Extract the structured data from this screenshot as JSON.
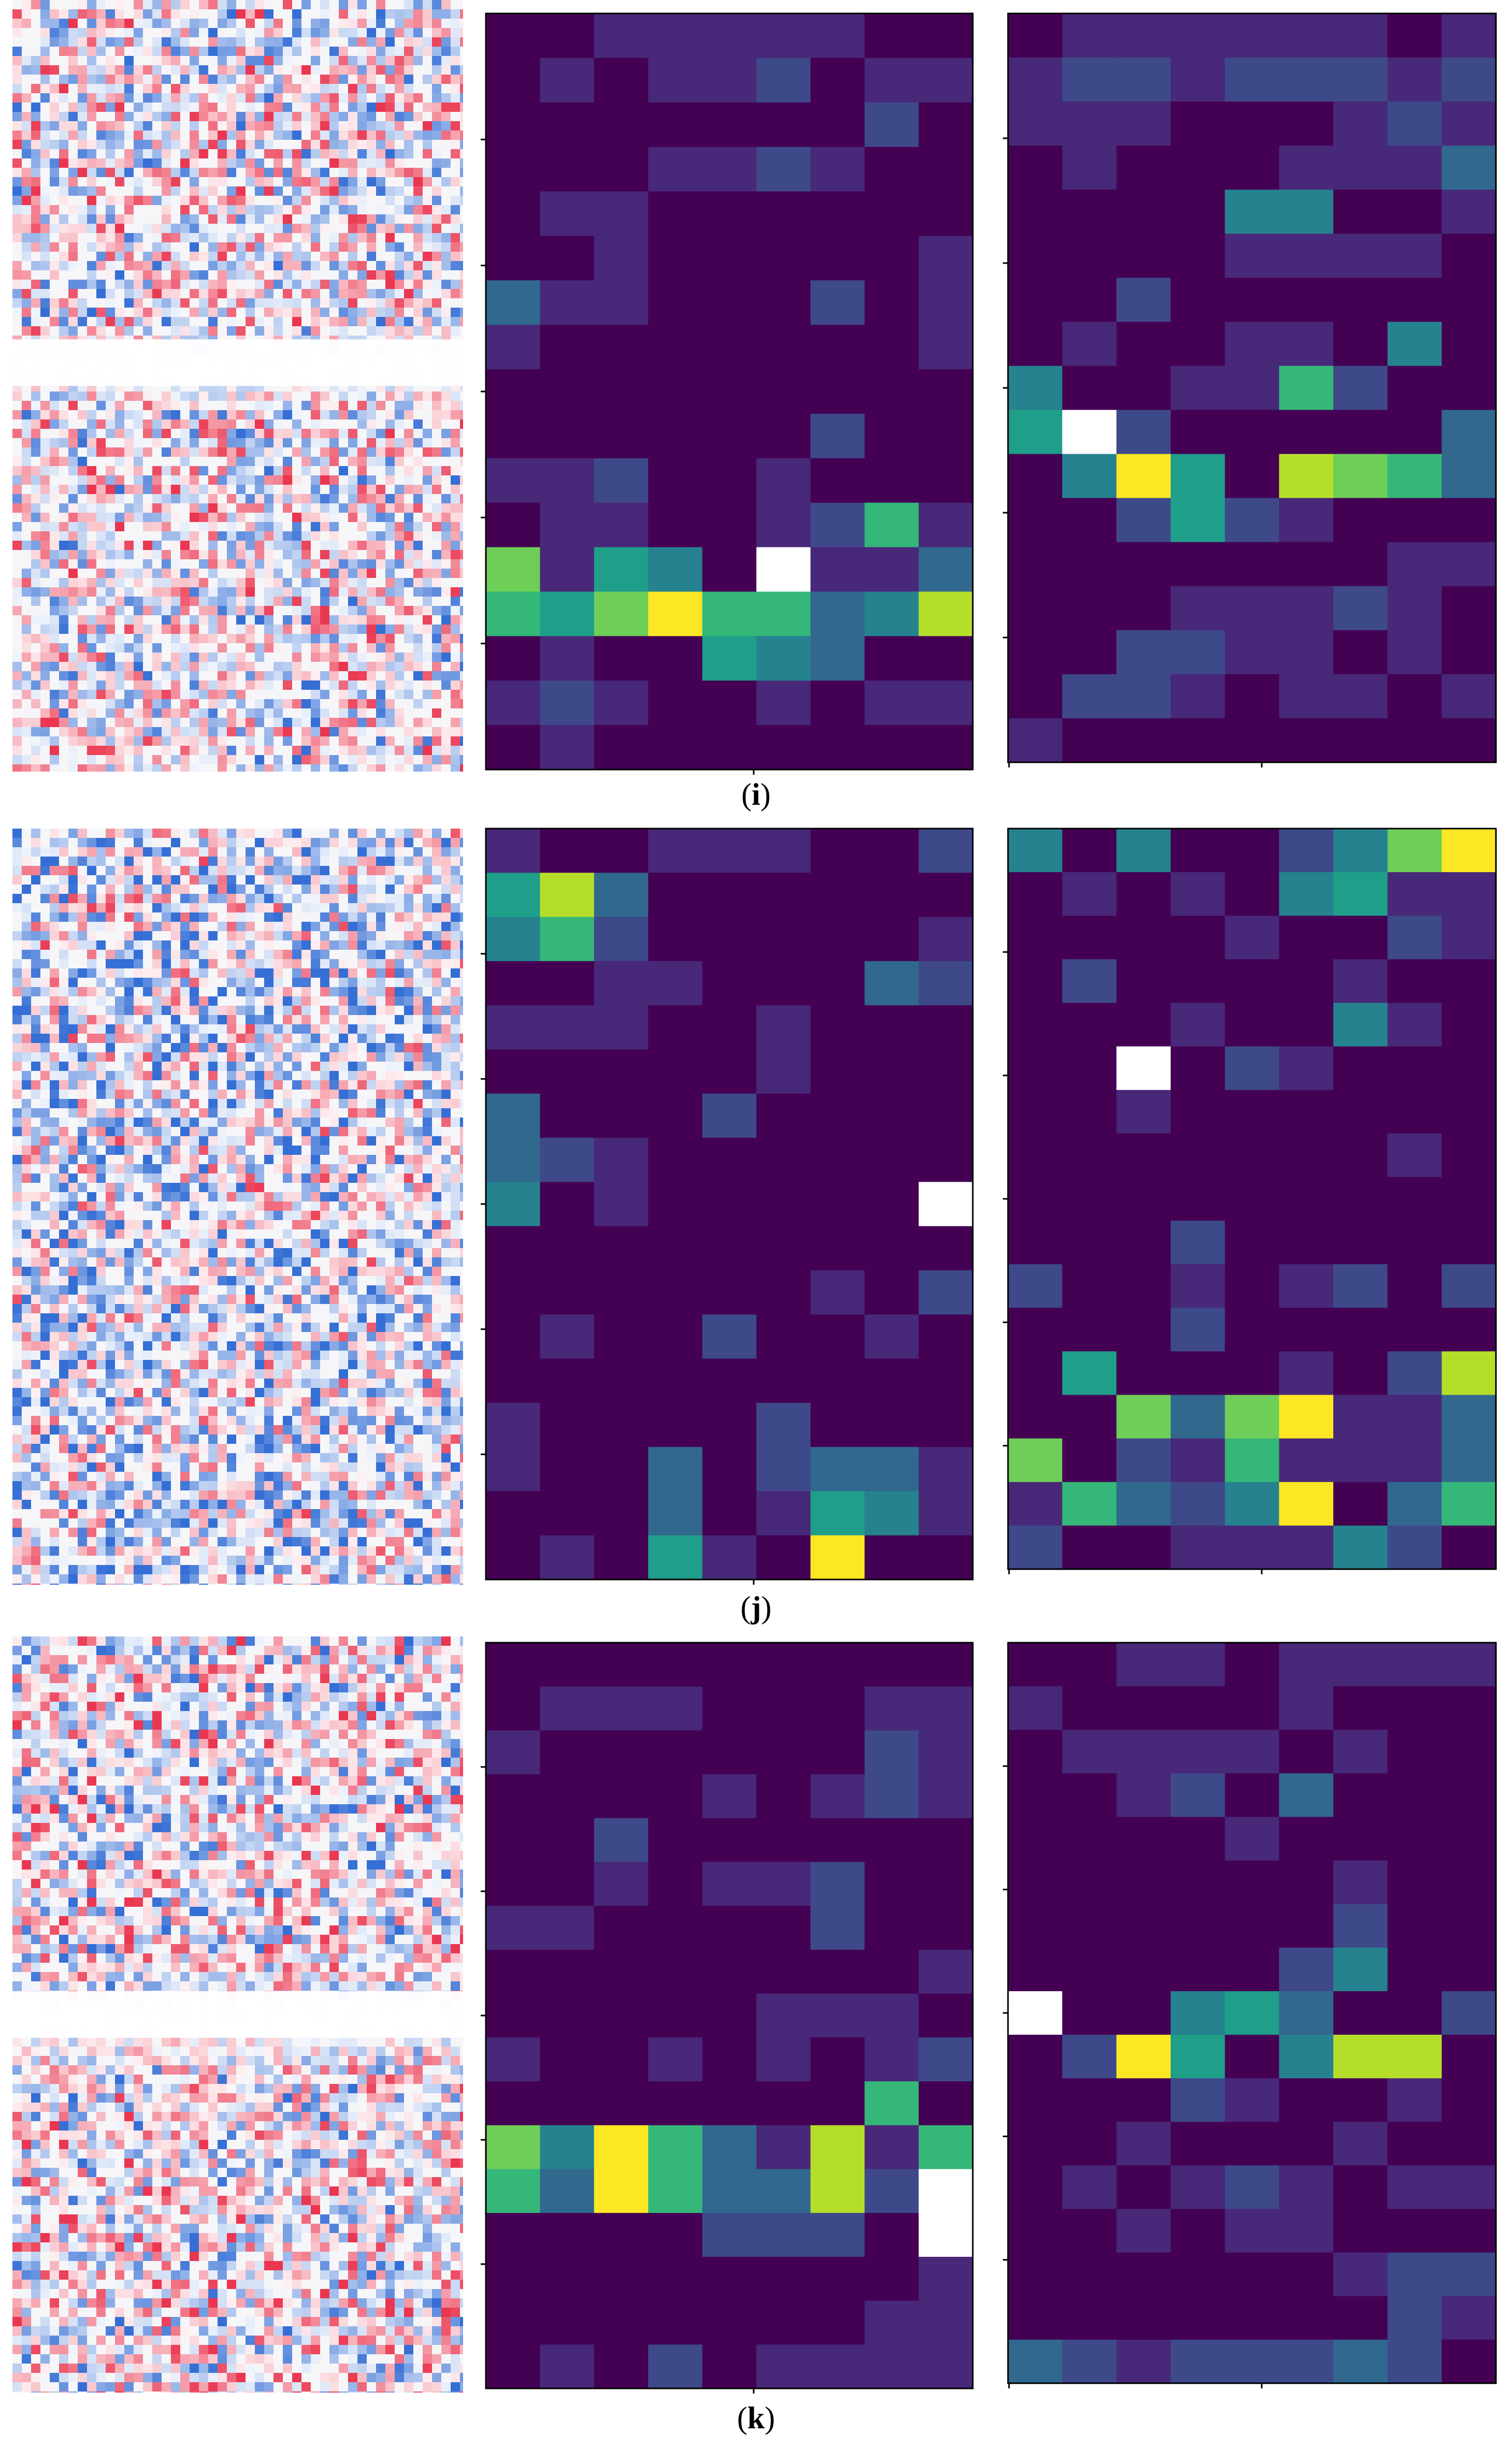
{
  "figure": {
    "panels": [
      {
        "caption_open": "(",
        "caption_letter": "i",
        "caption_close": ")"
      },
      {
        "caption_open": "(",
        "caption_letter": "j",
        "caption_close": ")"
      },
      {
        "caption_open": "(",
        "caption_letter": "k",
        "caption_close": ")"
      }
    ]
  },
  "colors": {
    "viridis": [
      "#440154",
      "#482878",
      "#3e4989",
      "#31688e",
      "#26828e",
      "#1f9e89",
      "#35b779",
      "#6ece58",
      "#b5de2b",
      "#fde725"
    ],
    "saturated_max": "#ffffff",
    "saliency_positive": "#e8203c",
    "saliency_negative": "#1f5fd0",
    "saliency_neutral": "#f6f6f8"
  },
  "chart_data": [
    {
      "panel": "i",
      "type": "heatmap",
      "role": "middle",
      "rows": 17,
      "cols": 9,
      "values": [
        [
          0,
          0,
          1,
          1,
          1,
          1,
          1,
          0,
          0
        ],
        [
          0,
          1,
          0,
          1,
          1,
          2,
          0,
          1,
          1
        ],
        [
          0,
          0,
          0,
          0,
          0,
          0,
          0,
          2,
          0
        ],
        [
          0,
          0,
          0,
          1,
          1,
          2,
          1,
          0,
          0
        ],
        [
          0,
          1,
          1,
          0,
          0,
          0,
          0,
          0,
          0
        ],
        [
          0,
          0,
          1,
          0,
          0,
          0,
          0,
          0,
          1
        ],
        [
          3,
          1,
          1,
          0,
          0,
          0,
          2,
          0,
          1
        ],
        [
          1,
          0,
          0,
          0,
          0,
          0,
          0,
          0,
          1
        ],
        [
          0,
          0,
          0,
          0,
          0,
          0,
          0,
          0,
          0
        ],
        [
          0,
          0,
          0,
          0,
          0,
          0,
          2,
          0,
          0
        ],
        [
          1,
          1,
          2,
          0,
          0,
          1,
          0,
          0,
          0
        ],
        [
          0,
          1,
          1,
          0,
          0,
          1,
          2,
          6,
          1
        ],
        [
          7,
          1,
          5,
          4,
          0,
          10,
          1,
          1,
          3
        ],
        [
          6,
          5,
          7,
          9,
          6,
          6,
          3,
          4,
          8
        ],
        [
          0,
          1,
          0,
          0,
          5,
          4,
          3,
          0,
          0
        ],
        [
          1,
          2,
          1,
          0,
          0,
          1,
          0,
          1,
          1
        ],
        [
          0,
          1,
          0,
          0,
          0,
          0,
          0,
          0,
          0
        ]
      ]
    },
    {
      "panel": "i",
      "type": "heatmap",
      "role": "right",
      "rows": 17,
      "cols": 9,
      "values": [
        [
          0,
          1,
          1,
          1,
          1,
          1,
          1,
          0,
          1
        ],
        [
          1,
          2,
          2,
          1,
          2,
          2,
          2,
          1,
          2
        ],
        [
          1,
          1,
          1,
          0,
          0,
          0,
          1,
          2,
          1
        ],
        [
          0,
          1,
          0,
          0,
          0,
          1,
          1,
          1,
          3
        ],
        [
          0,
          0,
          0,
          0,
          4,
          4,
          0,
          0,
          1
        ],
        [
          0,
          0,
          0,
          0,
          1,
          1,
          1,
          1,
          0
        ],
        [
          0,
          0,
          2,
          0,
          0,
          0,
          0,
          0,
          0
        ],
        [
          0,
          1,
          0,
          0,
          1,
          1,
          0,
          4,
          0
        ],
        [
          4,
          0,
          0,
          1,
          1,
          6,
          2,
          0,
          0
        ],
        [
          5,
          10,
          2,
          0,
          0,
          0,
          0,
          0,
          3
        ],
        [
          0,
          4,
          9,
          5,
          0,
          8,
          7,
          6,
          3
        ],
        [
          0,
          0,
          2,
          5,
          2,
          1,
          0,
          0,
          0
        ],
        [
          0,
          0,
          0,
          0,
          0,
          0,
          0,
          1,
          1
        ],
        [
          0,
          0,
          0,
          1,
          1,
          1,
          2,
          1,
          0
        ],
        [
          0,
          0,
          2,
          2,
          1,
          1,
          0,
          1,
          0
        ],
        [
          0,
          2,
          2,
          1,
          0,
          1,
          1,
          0,
          1
        ],
        [
          1,
          0,
          0,
          0,
          0,
          0,
          0,
          0,
          0
        ]
      ]
    },
    {
      "panel": "j",
      "type": "heatmap",
      "role": "middle",
      "rows": 17,
      "cols": 9,
      "values": [
        [
          1,
          0,
          0,
          1,
          1,
          1,
          0,
          0,
          2
        ],
        [
          5,
          8,
          3,
          0,
          0,
          0,
          0,
          0,
          0
        ],
        [
          4,
          6,
          2,
          0,
          0,
          0,
          0,
          0,
          1
        ],
        [
          0,
          0,
          1,
          1,
          0,
          0,
          0,
          3,
          2
        ],
        [
          1,
          1,
          1,
          0,
          0,
          1,
          0,
          0,
          0
        ],
        [
          0,
          0,
          0,
          0,
          0,
          1,
          0,
          0,
          0
        ],
        [
          3,
          0,
          0,
          0,
          2,
          0,
          0,
          0,
          0
        ],
        [
          3,
          2,
          1,
          0,
          0,
          0,
          0,
          0,
          0
        ],
        [
          4,
          0,
          1,
          0,
          0,
          0,
          0,
          0,
          10
        ],
        [
          0,
          0,
          0,
          0,
          0,
          0,
          0,
          0,
          0
        ],
        [
          0,
          0,
          0,
          0,
          0,
          0,
          1,
          0,
          2
        ],
        [
          0,
          1,
          0,
          0,
          2,
          0,
          0,
          1,
          0
        ],
        [
          0,
          0,
          0,
          0,
          0,
          0,
          0,
          0,
          0
        ],
        [
          1,
          0,
          0,
          0,
          0,
          2,
          0,
          0,
          0
        ],
        [
          1,
          0,
          0,
          3,
          0,
          2,
          3,
          3,
          1
        ],
        [
          0,
          0,
          0,
          3,
          0,
          1,
          5,
          4,
          1
        ],
        [
          0,
          1,
          0,
          5,
          1,
          0,
          9,
          0,
          0
        ]
      ]
    },
    {
      "panel": "j",
      "type": "heatmap",
      "role": "right",
      "rows": 17,
      "cols": 9,
      "values": [
        [
          4,
          0,
          4,
          0,
          0,
          2,
          4,
          7,
          9
        ],
        [
          0,
          1,
          0,
          1,
          0,
          4,
          5,
          1,
          1
        ],
        [
          0,
          0,
          0,
          0,
          1,
          0,
          0,
          2,
          1
        ],
        [
          0,
          2,
          0,
          0,
          0,
          0,
          1,
          0,
          0
        ],
        [
          0,
          0,
          0,
          1,
          0,
          0,
          4,
          1,
          0
        ],
        [
          0,
          0,
          10,
          0,
          2,
          1,
          0,
          0,
          0
        ],
        [
          0,
          0,
          1,
          0,
          0,
          0,
          0,
          0,
          0
        ],
        [
          0,
          0,
          0,
          0,
          0,
          0,
          0,
          1,
          0
        ],
        [
          0,
          0,
          0,
          0,
          0,
          0,
          0,
          0,
          0
        ],
        [
          0,
          0,
          0,
          2,
          0,
          0,
          0,
          0,
          0
        ],
        [
          2,
          0,
          0,
          1,
          0,
          1,
          2,
          0,
          2
        ],
        [
          0,
          0,
          0,
          2,
          0,
          0,
          0,
          0,
          0
        ],
        [
          0,
          5,
          0,
          0,
          0,
          1,
          0,
          2,
          8
        ],
        [
          0,
          0,
          7,
          3,
          7,
          9,
          1,
          1,
          3
        ],
        [
          7,
          0,
          2,
          1,
          6,
          1,
          1,
          1,
          3
        ],
        [
          1,
          6,
          3,
          2,
          4,
          9,
          0,
          3,
          6
        ],
        [
          2,
          0,
          0,
          1,
          1,
          1,
          4,
          2,
          0
        ]
      ]
    },
    {
      "panel": "k",
      "type": "heatmap",
      "role": "middle",
      "rows": 17,
      "cols": 9,
      "values": [
        [
          0,
          0,
          0,
          0,
          0,
          0,
          0,
          0,
          0
        ],
        [
          0,
          1,
          1,
          1,
          0,
          0,
          0,
          1,
          1
        ],
        [
          1,
          0,
          0,
          0,
          0,
          0,
          0,
          2,
          1
        ],
        [
          0,
          0,
          0,
          0,
          1,
          0,
          1,
          2,
          1
        ],
        [
          0,
          0,
          2,
          0,
          0,
          0,
          0,
          0,
          0
        ],
        [
          0,
          0,
          1,
          0,
          1,
          1,
          2,
          0,
          0
        ],
        [
          1,
          1,
          0,
          0,
          0,
          0,
          2,
          0,
          0
        ],
        [
          0,
          0,
          0,
          0,
          0,
          0,
          0,
          0,
          1
        ],
        [
          0,
          0,
          0,
          0,
          0,
          1,
          1,
          1,
          0
        ],
        [
          1,
          0,
          0,
          1,
          0,
          1,
          0,
          1,
          2
        ],
        [
          0,
          0,
          0,
          0,
          0,
          0,
          0,
          6,
          0
        ],
        [
          7,
          4,
          9,
          6,
          3,
          1,
          8,
          1,
          6
        ],
        [
          6,
          3,
          9,
          6,
          3,
          3,
          8,
          2,
          10
        ],
        [
          0,
          0,
          0,
          0,
          2,
          2,
          2,
          0,
          10
        ],
        [
          0,
          0,
          0,
          0,
          0,
          0,
          0,
          0,
          1
        ],
        [
          0,
          0,
          0,
          0,
          0,
          0,
          0,
          1,
          1
        ],
        [
          0,
          1,
          0,
          2,
          0,
          1,
          1,
          1,
          1
        ]
      ]
    },
    {
      "panel": "k",
      "type": "heatmap",
      "role": "right",
      "rows": 17,
      "cols": 9,
      "values": [
        [
          0,
          0,
          1,
          1,
          0,
          1,
          1,
          1,
          1
        ],
        [
          1,
          0,
          0,
          0,
          0,
          1,
          0,
          0,
          0
        ],
        [
          0,
          1,
          1,
          1,
          1,
          0,
          1,
          0,
          0
        ],
        [
          0,
          0,
          1,
          2,
          0,
          3,
          0,
          0,
          0
        ],
        [
          0,
          0,
          0,
          0,
          1,
          0,
          0,
          0,
          0
        ],
        [
          0,
          0,
          0,
          0,
          0,
          0,
          1,
          0,
          0
        ],
        [
          0,
          0,
          0,
          0,
          0,
          0,
          2,
          0,
          0
        ],
        [
          0,
          0,
          0,
          0,
          0,
          2,
          4,
          0,
          0
        ],
        [
          10,
          0,
          0,
          4,
          5,
          3,
          0,
          0,
          2
        ],
        [
          0,
          2,
          9,
          5,
          0,
          4,
          8,
          8,
          0
        ],
        [
          0,
          0,
          0,
          2,
          1,
          0,
          0,
          1,
          0
        ],
        [
          0,
          0,
          1,
          0,
          0,
          0,
          1,
          0,
          0
        ],
        [
          0,
          1,
          0,
          1,
          2,
          1,
          0,
          1,
          1
        ],
        [
          0,
          0,
          1,
          0,
          1,
          1,
          0,
          0,
          0
        ],
        [
          0,
          0,
          0,
          0,
          0,
          0,
          1,
          2,
          2
        ],
        [
          0,
          0,
          0,
          0,
          0,
          0,
          0,
          2,
          1
        ],
        [
          3,
          2,
          1,
          2,
          2,
          2,
          3,
          2,
          0
        ]
      ]
    }
  ]
}
